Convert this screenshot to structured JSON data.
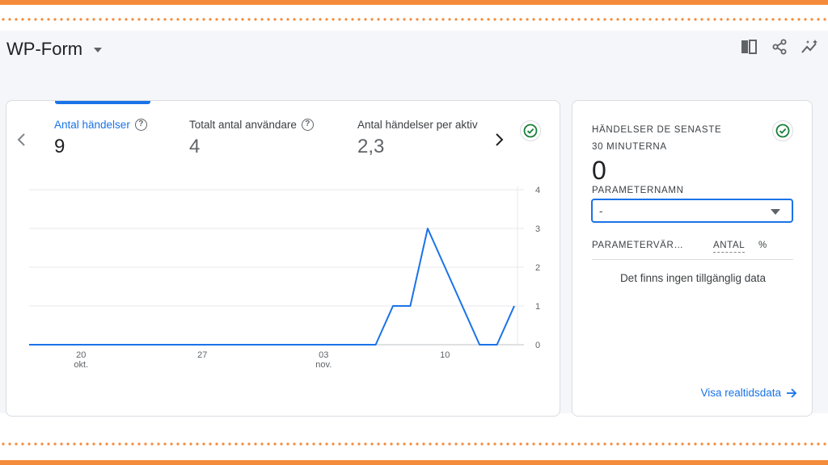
{
  "title": "WP-Form",
  "toolbar": {
    "icons": [
      "compare-icon",
      "share-icon",
      "insights-icon"
    ]
  },
  "metrics": [
    {
      "label": "Antal händelser",
      "value": "9",
      "active": true
    },
    {
      "label": "Totalt antal användare",
      "value": "4",
      "active": false
    },
    {
      "label": "Antal händelser per aktiv",
      "value": "2,3",
      "active": false
    }
  ],
  "realtime": {
    "title_line1": "HÄNDELSER DE SENASTE",
    "title_line2": "30 MINUTERNA",
    "count": "0",
    "param_label": "PARAMETERNAMN",
    "param_value": "-",
    "columns": [
      "PARAMETERVÄR…",
      "ANTAL",
      "%"
    ],
    "empty_message": "Det finns ingen tillgänglig data",
    "link_label": "Visa realtidsdata"
  },
  "colors": {
    "accent": "#1a73e8",
    "frame": "#f48b3a",
    "check": "#188038"
  },
  "chart_data": {
    "type": "line",
    "x_labels": [
      {
        "day": "20",
        "month": "okt."
      },
      {
        "day": "27",
        "month": ""
      },
      {
        "day": "03",
        "month": "nov."
      },
      {
        "day": "10",
        "month": ""
      }
    ],
    "y_ticks": [
      "4",
      "3",
      "2",
      "1",
      "0"
    ],
    "ylim": [
      0,
      4
    ],
    "grid": true,
    "series": [
      {
        "values": [
          0,
          0,
          0,
          0,
          0,
          0,
          0,
          0,
          0,
          0,
          0,
          0,
          0,
          0,
          0,
          0,
          0,
          0,
          0,
          0,
          0,
          1,
          1,
          3,
          2,
          1,
          0,
          0,
          1
        ]
      }
    ]
  }
}
